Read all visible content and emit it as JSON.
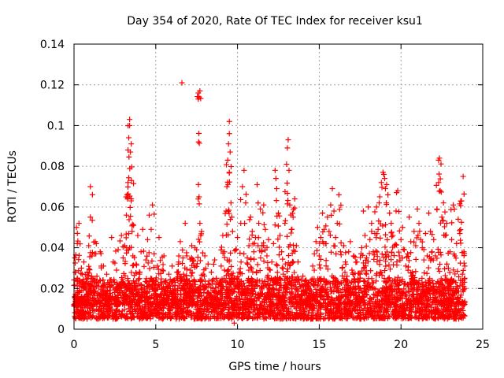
{
  "chart_data": {
    "type": "scatter",
    "title": "Day 354 of 2020, Rate Of TEC Index for receiver ksu1",
    "xlabel": "GPS time / hours",
    "ylabel": "ROTI / TECUs",
    "xlim": [
      0,
      25
    ],
    "ylim": [
      0,
      0.14
    ],
    "xticks": [
      "0",
      "5",
      "10",
      "15",
      "20",
      "25"
    ],
    "yticks": [
      "0",
      "0.02",
      "0.04",
      "0.06",
      "0.08",
      "0.1",
      "0.12",
      "0.14"
    ],
    "grid": true,
    "marker": "+",
    "color": "#ff0000",
    "series": [
      {
        "points": [
          [
            0.0,
            0.012
          ],
          [
            0.05,
            0.035
          ],
          [
            0.1,
            0.028
          ],
          [
            0.15,
            0.05
          ],
          [
            0.2,
            0.042
          ],
          [
            0.25,
            0.018
          ],
          [
            0.3,
            0.052
          ],
          [
            0.35,
            0.024
          ],
          [
            0.4,
            0.015
          ],
          [
            0.45,
            0.03
          ],
          [
            0.5,
            0.022
          ],
          [
            0.6,
            0.033
          ],
          [
            0.7,
            0.013
          ],
          [
            0.8,
            0.028
          ],
          [
            0.9,
            0.041
          ],
          [
            1.0,
            0.07
          ],
          [
            1.0,
            0.055
          ],
          [
            1.1,
            0.036
          ],
          [
            1.2,
            0.019
          ],
          [
            1.3,
            0.043
          ],
          [
            1.4,
            0.026
          ],
          [
            1.5,
            0.014
          ],
          [
            1.6,
            0.038
          ],
          [
            1.7,
            0.021
          ],
          [
            1.8,
            0.031
          ],
          [
            1.9,
            0.017
          ],
          [
            2.0,
            0.027
          ],
          [
            2.1,
            0.012
          ],
          [
            2.2,
            0.024
          ],
          [
            2.3,
            0.045
          ],
          [
            2.4,
            0.033
          ],
          [
            2.5,
            0.018
          ],
          [
            2.6,
            0.029
          ],
          [
            2.7,
            0.039
          ],
          [
            2.8,
            0.022
          ],
          [
            2.9,
            0.046
          ],
          [
            3.0,
            0.035
          ],
          [
            3.1,
            0.041
          ],
          [
            3.2,
            0.056
          ],
          [
            3.25,
            0.066
          ],
          [
            3.3,
            0.072
          ],
          [
            3.3,
            0.088
          ],
          [
            3.35,
            0.094
          ],
          [
            3.4,
            0.1
          ],
          [
            3.4,
            0.103
          ],
          [
            3.45,
            0.087
          ],
          [
            3.5,
            0.091
          ],
          [
            3.5,
            0.064
          ],
          [
            3.55,
            0.048
          ],
          [
            3.6,
            0.036
          ],
          [
            3.7,
            0.021
          ],
          [
            3.8,
            0.032
          ],
          [
            3.9,
            0.046
          ],
          [
            4.0,
            0.027
          ],
          [
            4.1,
            0.038
          ],
          [
            4.2,
            0.049
          ],
          [
            4.3,
            0.018
          ],
          [
            4.4,
            0.034
          ],
          [
            4.5,
            0.044
          ],
          [
            4.6,
            0.056
          ],
          [
            4.7,
            0.025
          ],
          [
            4.8,
            0.061
          ],
          [
            4.9,
            0.037
          ],
          [
            5.0,
            0.022
          ],
          [
            5.1,
            0.031
          ],
          [
            5.2,
            0.045
          ],
          [
            5.3,
            0.017
          ],
          [
            5.4,
            0.029
          ],
          [
            5.5,
            0.036
          ],
          [
            5.6,
            0.023
          ],
          [
            5.7,
            0.014
          ],
          [
            5.8,
            0.027
          ],
          [
            5.9,
            0.019
          ],
          [
            6.0,
            0.031
          ],
          [
            6.1,
            0.024
          ],
          [
            6.2,
            0.015
          ],
          [
            6.3,
            0.028
          ],
          [
            6.4,
            0.033
          ],
          [
            6.5,
            0.043
          ],
          [
            6.6,
            0.121
          ],
          [
            6.7,
            0.027
          ],
          [
            6.8,
            0.052
          ],
          [
            6.9,
            0.036
          ],
          [
            7.0,
            0.018
          ],
          [
            7.1,
            0.029
          ],
          [
            7.2,
            0.041
          ],
          [
            7.3,
            0.034
          ],
          [
            7.4,
            0.04
          ],
          [
            7.5,
            0.039
          ],
          [
            7.6,
            0.113
          ],
          [
            7.6,
            0.116
          ],
          [
            7.65,
            0.114
          ],
          [
            7.7,
            0.117
          ],
          [
            7.7,
            0.052
          ],
          [
            7.8,
            0.048
          ],
          [
            7.9,
            0.027
          ],
          [
            8.0,
            0.036
          ],
          [
            8.1,
            0.021
          ],
          [
            8.2,
            0.032
          ],
          [
            8.3,
            0.017
          ],
          [
            8.4,
            0.028
          ],
          [
            8.5,
            0.02
          ],
          [
            8.6,
            0.034
          ],
          [
            8.7,
            0.025
          ],
          [
            8.8,
            0.014
          ],
          [
            8.9,
            0.022
          ],
          [
            9.0,
            0.031
          ],
          [
            9.1,
            0.046
          ],
          [
            9.2,
            0.038
          ],
          [
            9.3,
            0.058
          ],
          [
            9.35,
            0.07
          ],
          [
            9.4,
            0.083
          ],
          [
            9.45,
            0.091
          ],
          [
            9.5,
            0.102
          ],
          [
            9.5,
            0.096
          ],
          [
            9.55,
            0.087
          ],
          [
            9.6,
            0.062
          ],
          [
            9.65,
            0.055
          ],
          [
            9.7,
            0.048
          ],
          [
            9.8,
            0.003
          ],
          [
            9.9,
            0.039
          ],
          [
            10.0,
            0.045
          ],
          [
            10.1,
            0.028
          ],
          [
            10.2,
            0.052
          ],
          [
            10.3,
            0.07
          ],
          [
            10.4,
            0.078
          ],
          [
            10.5,
            0.062
          ],
          [
            10.6,
            0.035
          ],
          [
            10.7,
            0.041
          ],
          [
            10.8,
            0.055
          ],
          [
            10.9,
            0.048
          ],
          [
            11.0,
            0.038
          ],
          [
            11.1,
            0.045
          ],
          [
            11.2,
            0.071
          ],
          [
            11.3,
            0.052
          ],
          [
            11.4,
            0.059
          ],
          [
            11.5,
            0.041
          ],
          [
            11.6,
            0.061
          ],
          [
            11.7,
            0.049
          ],
          [
            11.8,
            0.036
          ],
          [
            11.9,
            0.044
          ],
          [
            12.0,
            0.029
          ],
          [
            12.1,
            0.033
          ],
          [
            12.2,
            0.042
          ],
          [
            12.3,
            0.078
          ],
          [
            12.35,
            0.074
          ],
          [
            12.4,
            0.069
          ],
          [
            12.5,
            0.057
          ],
          [
            12.6,
            0.046
          ],
          [
            12.7,
            0.038
          ],
          [
            12.8,
            0.027
          ],
          [
            12.9,
            0.052
          ],
          [
            13.0,
            0.081
          ],
          [
            13.05,
            0.089
          ],
          [
            13.1,
            0.093
          ],
          [
            13.15,
            0.078
          ],
          [
            13.2,
            0.061
          ],
          [
            13.3,
            0.049
          ],
          [
            13.4,
            0.055
          ],
          [
            13.5,
            0.064
          ],
          [
            13.6,
            0.041
          ],
          [
            13.7,
            0.033
          ],
          [
            13.8,
            0.022
          ],
          [
            13.9,
            0.017
          ],
          [
            14.0,
            0.026
          ],
          [
            14.1,
            0.013
          ],
          [
            14.2,
            0.018
          ],
          [
            14.3,
            0.021
          ],
          [
            14.4,
            0.016
          ],
          [
            14.5,
            0.024
          ],
          [
            14.6,
            0.031
          ],
          [
            14.7,
            0.037
          ],
          [
            14.8,
            0.043
          ],
          [
            14.9,
            0.05
          ],
          [
            15.0,
            0.036
          ],
          [
            15.1,
            0.045
          ],
          [
            15.2,
            0.057
          ],
          [
            15.3,
            0.049
          ],
          [
            15.4,
            0.042
          ],
          [
            15.5,
            0.055
          ],
          [
            15.6,
            0.048
          ],
          [
            15.7,
            0.061
          ],
          [
            15.8,
            0.069
          ],
          [
            15.9,
            0.058
          ],
          [
            16.0,
            0.045
          ],
          [
            16.1,
            0.052
          ],
          [
            16.2,
            0.066
          ],
          [
            16.3,
            0.038
          ],
          [
            16.4,
            0.03
          ],
          [
            16.5,
            0.041
          ],
          [
            16.6,
            0.033
          ],
          [
            16.7,
            0.026
          ],
          [
            16.8,
            0.038
          ],
          [
            16.9,
            0.043
          ],
          [
            17.0,
            0.029
          ],
          [
            17.1,
            0.036
          ],
          [
            17.2,
            0.021
          ],
          [
            17.3,
            0.033
          ],
          [
            17.4,
            0.018
          ],
          [
            17.5,
            0.027
          ],
          [
            17.6,
            0.04
          ],
          [
            17.7,
            0.058
          ],
          [
            17.8,
            0.046
          ],
          [
            17.9,
            0.035
          ],
          [
            18.0,
            0.06
          ],
          [
            18.1,
            0.044
          ],
          [
            18.2,
            0.052
          ],
          [
            18.3,
            0.038
          ],
          [
            18.4,
            0.047
          ],
          [
            18.5,
            0.06
          ],
          [
            18.6,
            0.049
          ],
          [
            18.7,
            0.065
          ],
          [
            18.8,
            0.072
          ],
          [
            18.9,
            0.077
          ],
          [
            18.95,
            0.076
          ],
          [
            19.0,
            0.074
          ],
          [
            19.05,
            0.069
          ],
          [
            19.1,
            0.062
          ],
          [
            19.2,
            0.066
          ],
          [
            19.3,
            0.057
          ],
          [
            19.4,
            0.052
          ],
          [
            19.5,
            0.046
          ],
          [
            19.6,
            0.041
          ],
          [
            19.7,
            0.058
          ],
          [
            19.8,
            0.068
          ],
          [
            19.9,
            0.036
          ],
          [
            20.0,
            0.044
          ],
          [
            20.1,
            0.05
          ],
          [
            20.2,
            0.039
          ],
          [
            20.3,
            0.031
          ],
          [
            20.4,
            0.037
          ],
          [
            20.5,
            0.055
          ],
          [
            20.6,
            0.043
          ],
          [
            20.7,
            0.028
          ],
          [
            20.8,
            0.048
          ],
          [
            20.9,
            0.041
          ],
          [
            21.0,
            0.059
          ],
          [
            21.1,
            0.052
          ],
          [
            21.2,
            0.044
          ],
          [
            21.3,
            0.04
          ],
          [
            21.4,
            0.034
          ],
          [
            21.5,
            0.047
          ],
          [
            21.6,
            0.036
          ],
          [
            21.7,
            0.057
          ],
          [
            21.8,
            0.048
          ],
          [
            21.9,
            0.038
          ],
          [
            22.0,
            0.044
          ],
          [
            22.1,
            0.036
          ],
          [
            22.2,
            0.059
          ],
          [
            22.3,
            0.072
          ],
          [
            22.3,
            0.083
          ],
          [
            22.35,
            0.084
          ],
          [
            22.4,
            0.068
          ],
          [
            22.5,
            0.055
          ],
          [
            22.6,
            0.062
          ],
          [
            22.7,
            0.046
          ],
          [
            22.8,
            0.052
          ],
          [
            22.9,
            0.03
          ],
          [
            23.0,
            0.038
          ],
          [
            23.1,
            0.044
          ],
          [
            23.2,
            0.061
          ],
          [
            23.3,
            0.036
          ],
          [
            23.4,
            0.042
          ],
          [
            23.5,
            0.054
          ],
          [
            23.6,
            0.047
          ],
          [
            23.7,
            0.063
          ],
          [
            23.8,
            0.075
          ],
          [
            23.85,
            0.038
          ],
          [
            23.9,
            0.031
          ],
          [
            23.9,
            0.02
          ]
        ],
        "dense_band": {
          "x_range": [
            0,
            23.9
          ],
          "y_range": [
            0.005,
            0.025
          ],
          "note_values": "continuous dense cluster of ROTI values between about 0.005 and 0.025 TECUs across the whole day"
        }
      }
    ]
  }
}
